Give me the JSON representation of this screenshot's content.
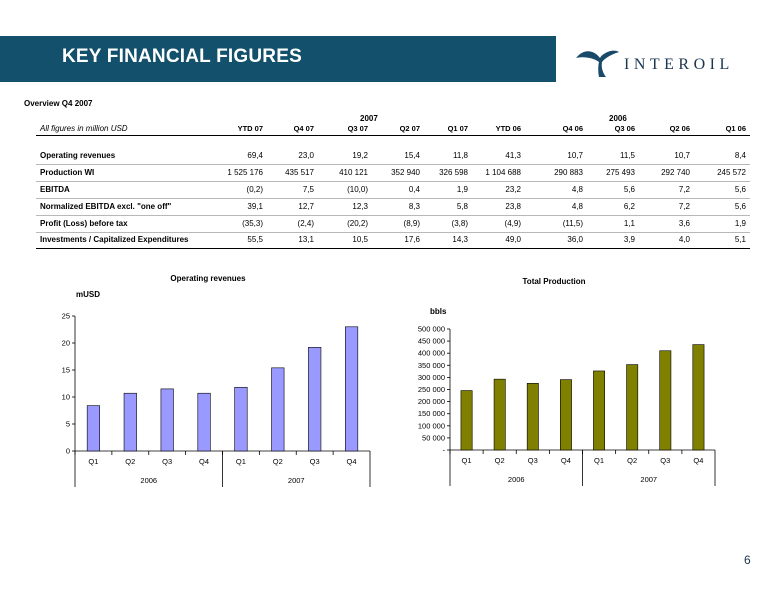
{
  "header": {
    "title": "KEY FINANCIAL FIGURES",
    "logo_text": "INTEROIL"
  },
  "overview": {
    "title": "Overview Q4 2007",
    "units_note": "All figures in million USD",
    "year_2007": "2007",
    "year_2006": "2006",
    "columns": [
      "YTD 07",
      "Q4 07",
      "Q3 07",
      "Q2 07",
      "Q1 07",
      "YTD 06",
      "Q4 06",
      "Q3 06",
      "Q2 06",
      "Q1 06"
    ],
    "rows": [
      {
        "label": "Operating revenues",
        "values": [
          "69,4",
          "23,0",
          "19,2",
          "15,4",
          "11,8",
          "41,3",
          "10,7",
          "11,5",
          "10,7",
          "8,4"
        ]
      },
      {
        "label": "Production WI",
        "values": [
          "1 525 176",
          "435 517",
          "410 121",
          "352 940",
          "326 598",
          "1 104 688",
          "290 883",
          "275 493",
          "292 740",
          "245 572"
        ]
      },
      {
        "label": "EBITDA",
        "values": [
          "(0,2)",
          "7,5",
          "(10,0)",
          "0,4",
          "1,9",
          "23,2",
          "4,8",
          "5,6",
          "7,2",
          "5,6"
        ]
      },
      {
        "label": "Normalized EBITDA excl. \"one off\"",
        "values": [
          "39,1",
          "12,7",
          "12,3",
          "8,3",
          "5,8",
          "23,8",
          "4,8",
          "6,2",
          "7,2",
          "5,6"
        ]
      },
      {
        "label": "Profit (Loss) before tax",
        "values": [
          "(35,3)",
          "(2,4)",
          "(20,2)",
          "(8,9)",
          "(3,8)",
          "(4,9)",
          "(11,5)",
          "1,1",
          "3,6",
          "1,9"
        ]
      },
      {
        "label": "Investments / Capitalized Expenditures",
        "values": [
          "55,5",
          "13,1",
          "10,5",
          "17,6",
          "14,3",
          "49,0",
          "36,0",
          "3,9",
          "4,0",
          "5,1"
        ]
      }
    ]
  },
  "chart_data": [
    {
      "type": "bar",
      "title": "Operating revenues",
      "ylabel": "mUSD",
      "categories": [
        "Q1",
        "Q2",
        "Q3",
        "Q4",
        "Q1",
        "Q2",
        "Q3",
        "Q4"
      ],
      "groups": [
        "2006",
        "2007"
      ],
      "values": [
        8.4,
        10.7,
        11.5,
        10.7,
        11.8,
        15.4,
        19.2,
        23.0
      ],
      "ylim": [
        0,
        25
      ],
      "yticks": [
        0,
        5,
        10,
        15,
        20,
        25
      ],
      "ytick_labels": [
        "0",
        "5",
        "10",
        "15",
        "20",
        "25"
      ],
      "bar_color": "#9999ff",
      "grid": false
    },
    {
      "type": "bar",
      "title": "Total Production",
      "ylabel": "bbls",
      "categories": [
        "Q1",
        "Q2",
        "Q3",
        "Q4",
        "Q1",
        "Q2",
        "Q3",
        "Q4"
      ],
      "groups": [
        "2006",
        "2007"
      ],
      "values": [
        245572,
        292740,
        275493,
        290883,
        326598,
        352940,
        410121,
        435517
      ],
      "ylim": [
        0,
        500000
      ],
      "yticks": [
        0,
        50000,
        100000,
        150000,
        200000,
        250000,
        300000,
        350000,
        400000,
        450000,
        500000
      ],
      "ytick_labels": [
        "-",
        "50 000",
        "100 000",
        "150 000",
        "200 000",
        "250 000",
        "300 000",
        "350 000",
        "400 000",
        "450 000",
        "500 000"
      ],
      "bar_color": "#808000",
      "grid": false
    }
  ],
  "page_number": "6"
}
